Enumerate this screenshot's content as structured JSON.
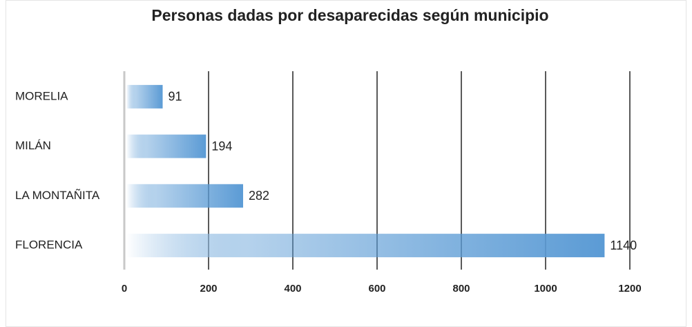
{
  "chart_data": {
    "type": "hbar",
    "title": "Personas dadas por desaparecidas según municipio",
    "categories": [
      "MORELIA",
      "MILÁN",
      "LA MONTAÑITA",
      "FLORENCIA"
    ],
    "values": [
      91,
      194,
      282,
      1140
    ],
    "color": "#5b9bd5",
    "xlim": [
      0,
      1200
    ],
    "xticks": [
      0,
      200,
      400,
      600,
      800,
      1000,
      1200
    ],
    "grid": true
  }
}
